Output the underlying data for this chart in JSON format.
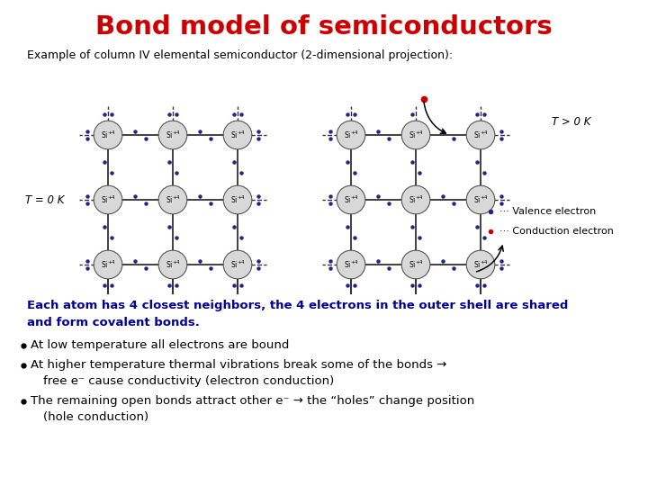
{
  "title": "Bond model of semiconductors",
  "title_color": "#cc0000",
  "subtitle": "Example of column IV elemental semiconductor (2-dimensional projection):",
  "left_label": "T = 0 K",
  "right_label": "T > 0 K",
  "atom_color": "#d8d8d8",
  "atom_edge_color": "#555555",
  "bond_color": "#333333",
  "electron_color": "#22228a",
  "conduction_color": "#cc0000",
  "bg_color": "#ffffff",
  "grid_rows": 3,
  "grid_cols": 3,
  "bullet_text_line1": "Each atom has 4 closest neighbors, the 4 electrons in the outer shell are shared",
  "bullet_text_line2": "and form covalent bonds.",
  "bullet1": "At low temperature all electrons are bound",
  "bullet2": "At higher temperature thermal vibrations break some of the bonds →",
  "bullet2b": "free e⁻ cause conductivity (electron conduction)",
  "bullet3": "The remaining open bonds attract other e⁻ → the “holes” change position",
  "bullet3b": "(hole conduction)"
}
